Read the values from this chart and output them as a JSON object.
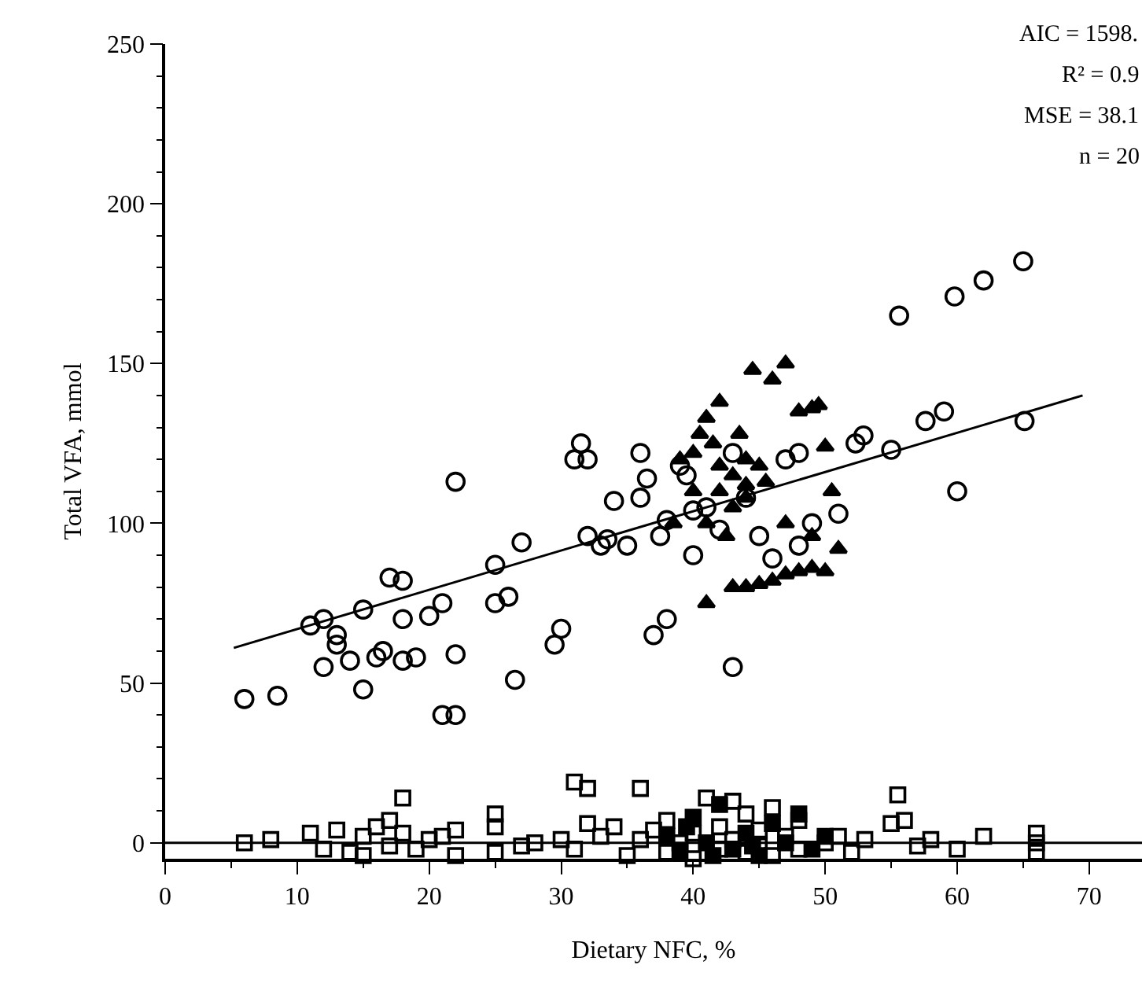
{
  "chart_data": {
    "type": "scatter",
    "xlabel": "Dietary NFC, %",
    "ylabel": "Total VFA, mmol",
    "xlim": [
      0,
      74
    ],
    "ylim": [
      -5,
      250
    ],
    "xticks": [
      0,
      10,
      20,
      30,
      40,
      50,
      60,
      70
    ],
    "yticks": [
      0,
      50,
      100,
      150,
      200,
      250
    ],
    "legend": false,
    "annotations": [
      "AIC = 1598.",
      "R² = 0.9",
      "MSE = 38.1",
      "n = 20"
    ],
    "ref_lines": [
      {
        "axis": "y",
        "value": 0,
        "color": "#000000"
      }
    ],
    "series": [
      {
        "color": "#000000",
        "marker": "circle-open",
        "x": [
          6,
          8.5,
          11,
          12,
          12,
          13,
          13,
          14,
          15,
          15,
          16,
          16.5,
          17,
          18,
          18,
          18,
          19,
          20,
          21,
          21,
          22,
          22,
          22,
          25,
          25,
          26,
          26.5,
          27,
          29.5,
          30,
          31,
          31.5,
          32,
          32,
          33,
          33.5,
          34,
          35,
          36,
          36,
          36.5,
          37,
          37.5,
          38,
          38,
          39,
          39.5,
          40,
          40,
          41,
          42,
          43,
          43,
          44,
          45,
          46,
          47,
          48,
          48,
          49,
          51,
          52.3,
          52.9,
          55,
          55.6,
          57.6,
          59,
          59.8,
          60,
          62,
          65,
          65.1
        ],
        "values": [
          45,
          46,
          68,
          70,
          55,
          65,
          62,
          57,
          48,
          73,
          58,
          60,
          83,
          82,
          70,
          57,
          58,
          71,
          40,
          75,
          40,
          59,
          113,
          75,
          87,
          77,
          51,
          94,
          62,
          67,
          120,
          125,
          96,
          120,
          93,
          95,
          107,
          93,
          122,
          108,
          114,
          65,
          96,
          70,
          101,
          118,
          115,
          90,
          104,
          105,
          98,
          55,
          122,
          108,
          96,
          89,
          120,
          93,
          122,
          100,
          103,
          125,
          127.5,
          123,
          165,
          132,
          135,
          171,
          110,
          176,
          182,
          132
        ]
      },
      {
        "color": "#000000",
        "marker": "triangle",
        "x": [
          39,
          40,
          40.5,
          41,
          41.5,
          42,
          42,
          43,
          43,
          44,
          44,
          44.5,
          45,
          46,
          47,
          48,
          49,
          49.5,
          50,
          50.5,
          51,
          41,
          43,
          44,
          45,
          46,
          47,
          48,
          49,
          50,
          38.5,
          41,
          42.5,
          44,
          45.5,
          47,
          49,
          43.5,
          40,
          42
        ],
        "values": [
          120,
          122,
          128,
          133,
          125,
          118,
          110,
          115,
          105,
          112,
          120,
          148,
          118,
          145,
          150,
          135,
          136,
          137,
          124,
          110,
          92,
          75,
          80,
          80,
          81,
          82,
          84,
          85,
          86,
          85,
          100,
          100,
          96,
          108,
          113,
          100,
          96,
          128,
          110,
          138
        ]
      },
      {
        "color": "#000000",
        "marker": "square-open",
        "x": [
          6,
          8,
          11,
          12,
          13,
          14,
          15,
          15,
          16,
          17,
          17,
          18,
          18,
          19,
          20,
          21,
          22,
          22,
          25,
          25,
          25,
          27,
          28,
          30,
          31,
          31,
          32,
          32,
          33,
          34,
          35,
          36,
          36,
          37,
          38,
          38,
          39,
          40,
          40,
          41,
          42,
          42,
          43,
          43,
          44,
          44,
          45,
          45,
          46,
          46,
          47,
          48,
          48,
          50,
          51,
          52,
          53,
          55,
          55.5,
          56,
          57,
          58,
          60,
          62,
          66,
          66,
          66
        ],
        "values": [
          0,
          1,
          3,
          -2,
          4,
          -3,
          2,
          -4,
          5,
          -1,
          7,
          14,
          3,
          -2,
          1,
          2,
          -4,
          4,
          -3,
          5,
          9,
          -1,
          0,
          1,
          -2,
          19,
          6,
          17,
          2,
          5,
          -4,
          17,
          1,
          4,
          -3,
          7,
          0,
          3,
          -5,
          14,
          -2,
          5,
          13,
          1,
          -3,
          9,
          4,
          -1,
          11,
          -4,
          2,
          7,
          -2,
          0,
          2,
          -3,
          1,
          6,
          15,
          7,
          -1,
          1,
          -2,
          2,
          3,
          -3,
          0
        ]
      },
      {
        "color": "#000000",
        "marker": "square",
        "x": [
          38,
          39,
          40,
          41,
          42,
          43,
          44,
          45,
          46,
          47,
          48,
          49,
          50,
          39.5,
          41.5,
          44.5
        ],
        "values": [
          2,
          -3,
          8,
          0,
          12,
          -2,
          3,
          -4,
          6,
          0,
          9,
          -2,
          2,
          5,
          -4,
          -1
        ]
      },
      {
        "type": "line",
        "color": "#000000",
        "x": [
          5.2,
          69.5
        ],
        "values": [
          61,
          140
        ]
      }
    ]
  }
}
